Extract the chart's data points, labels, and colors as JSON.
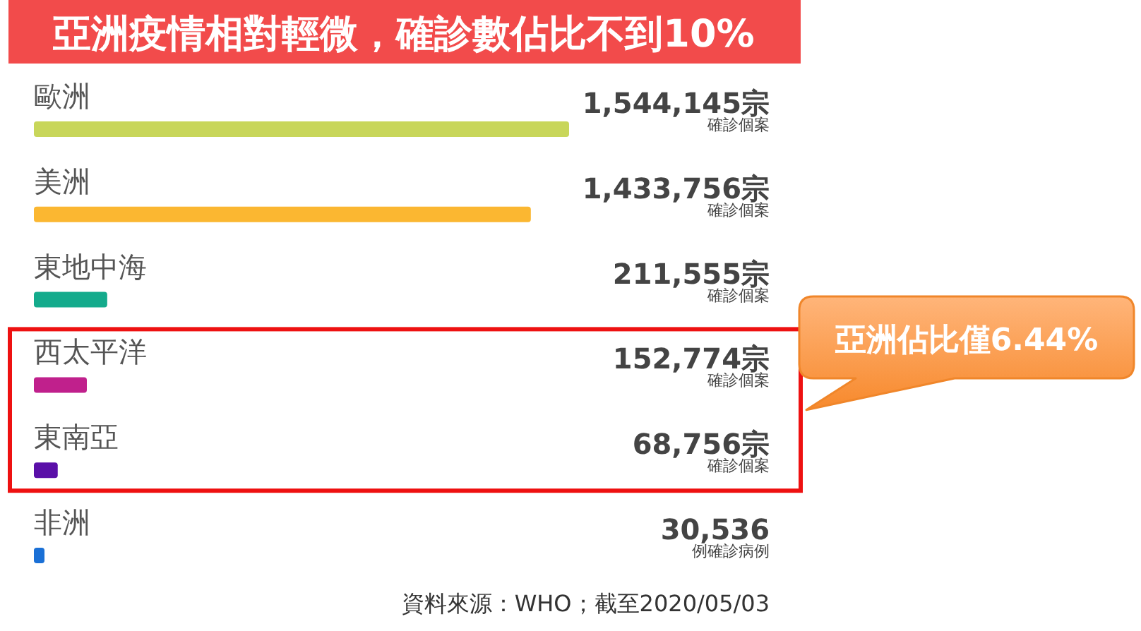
{
  "chart_data": {
    "type": "bar",
    "orientation": "horizontal",
    "title": "亞洲疫情相對輕微，確診數佔比不到10%",
    "categories": [
      "歐洲",
      "美洲",
      "東地中海",
      "西太平洋",
      "東南亞",
      "非洲"
    ],
    "values": [
      1544145,
      1433756,
      211555,
      152774,
      68756,
      30536
    ],
    "colors": [
      "#c8d65a",
      "#fbb731",
      "#14ab8c",
      "#c0208c",
      "#5a0fa8",
      "#1a70d6"
    ],
    "value_labels": [
      "1,544,145宗",
      "1,433,756宗",
      "211,555宗",
      "152,774宗",
      "68,756宗",
      "30,536"
    ],
    "annotations": [
      "確診個案",
      "確診個案",
      "確診個案",
      "確診個案",
      "確診個案",
      "例確診病例",
      "亞洲佔比僅6.44%",
      "資料來源：WHO；截至2020/05/03"
    ]
  }
}
